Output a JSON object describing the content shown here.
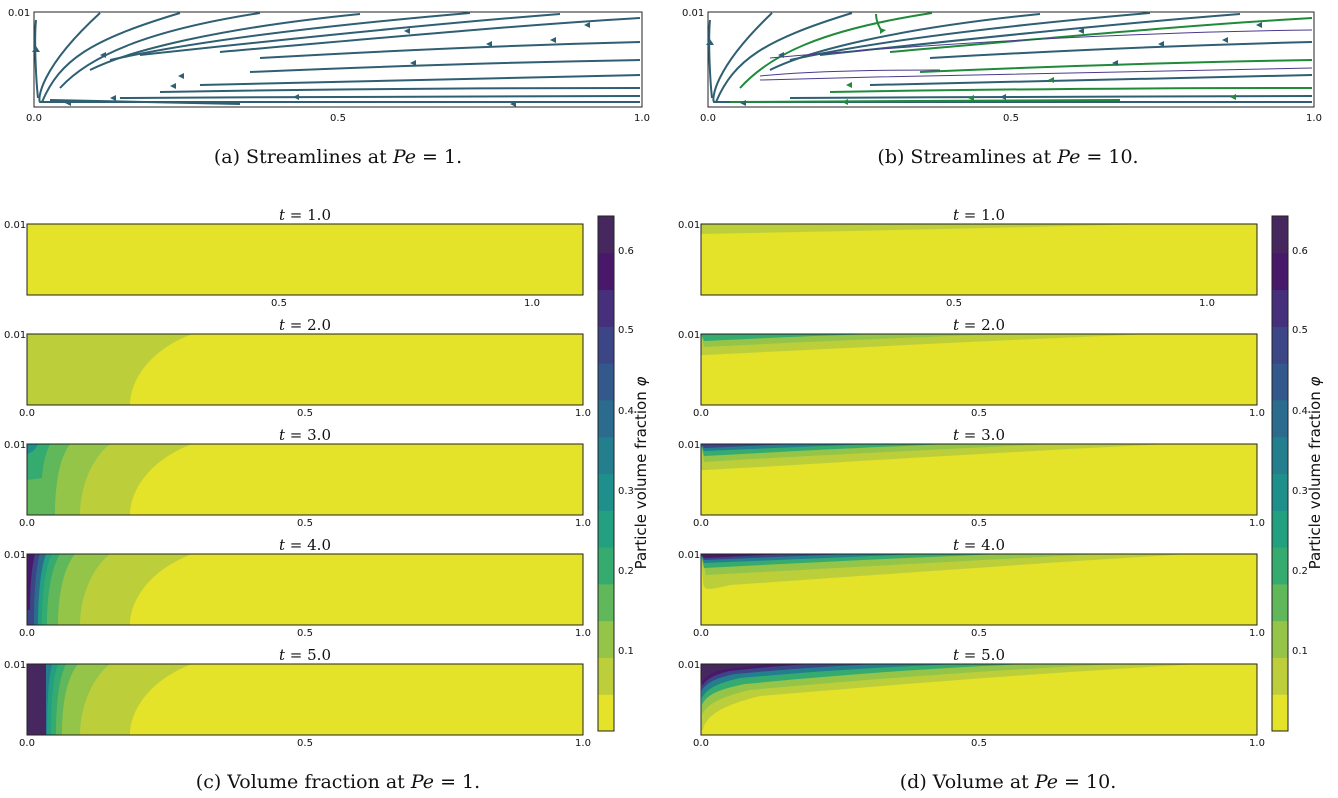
{
  "captions": {
    "a": {
      "prefix": "(a) Streamlines at ",
      "var": "Pe",
      "suffix": " = 1."
    },
    "b": {
      "prefix": "(b) Streamlines at ",
      "var": "Pe",
      "suffix": " = 10."
    },
    "c": {
      "prefix": "(c) Volume fraction at ",
      "var": "Pe",
      "suffix": " = 1."
    },
    "d": {
      "prefix": "(d) Volume at ",
      "var": "Pe",
      "suffix": " = 10."
    }
  },
  "streamline_ticks": {
    "x": [
      "0.0",
      "0.5",
      "1.0"
    ],
    "y": [
      "0.01"
    ]
  },
  "colorbar": {
    "label_text": "Particle volume fraction ",
    "label_symbol": "φ",
    "ticks": [
      "0.6",
      "0.5",
      "0.4",
      "0.3",
      "0.2",
      "0.1"
    ]
  },
  "contour_panels": {
    "c": [
      {
        "title_var": "t",
        "title_value": " = 1.0",
        "x_ticks": [
          "0.5",
          "1.0"
        ],
        "y_tick": "0.01"
      },
      {
        "title_var": "t",
        "title_value": " = 2.0",
        "x_ticks": [
          "0.0",
          "0.5",
          "1.0"
        ],
        "y_tick": "0.01"
      },
      {
        "title_var": "t",
        "title_value": " = 3.0",
        "x_ticks": [
          "0.0",
          "0.5",
          "1.0"
        ],
        "y_tick": "0.01"
      },
      {
        "title_var": "t",
        "title_value": " = 4.0",
        "x_ticks": [
          "0.0",
          "0.5",
          "1.0"
        ],
        "y_tick": "0.01"
      },
      {
        "title_var": "t",
        "title_value": " = 5.0",
        "x_ticks": [
          "0.0",
          "0.5",
          "1.0"
        ],
        "y_tick": "0.01"
      }
    ],
    "d": [
      {
        "title_var": "t",
        "title_value": " = 1.0",
        "x_ticks": [
          "0.5",
          "1.0"
        ],
        "y_tick": "0.01"
      },
      {
        "title_var": "t",
        "title_value": " = 2.0",
        "x_ticks": [
          "0.0",
          "0.5",
          "1.0"
        ],
        "y_tick": "0.01"
      },
      {
        "title_var": "t",
        "title_value": " = 3.0",
        "x_ticks": [
          "0.0",
          "0.5",
          "1.0"
        ],
        "y_tick": "0.01"
      },
      {
        "title_var": "t",
        "title_value": " = 4.0",
        "x_ticks": [
          "0.0",
          "0.5",
          "1.0"
        ],
        "y_tick": "0.01"
      },
      {
        "title_var": "t",
        "title_value": " = 5.0",
        "x_ticks": [
          "0.0",
          "0.5",
          "1.0"
        ],
        "y_tick": "0.01"
      }
    ]
  },
  "colors": {
    "streamline": "#2f5f72",
    "streamline_green": "#1f8a3a",
    "streamline_violet": "#4b3a8c",
    "viridis": [
      "#e4e229",
      "#bccf3b",
      "#94c549",
      "#61b85a",
      "#36ab6f",
      "#22a07f",
      "#1f8f8b",
      "#237e8e",
      "#2b6c8e",
      "#33598c",
      "#3c4586",
      "#46307b",
      "#48196b",
      "#46285f"
    ]
  }
}
